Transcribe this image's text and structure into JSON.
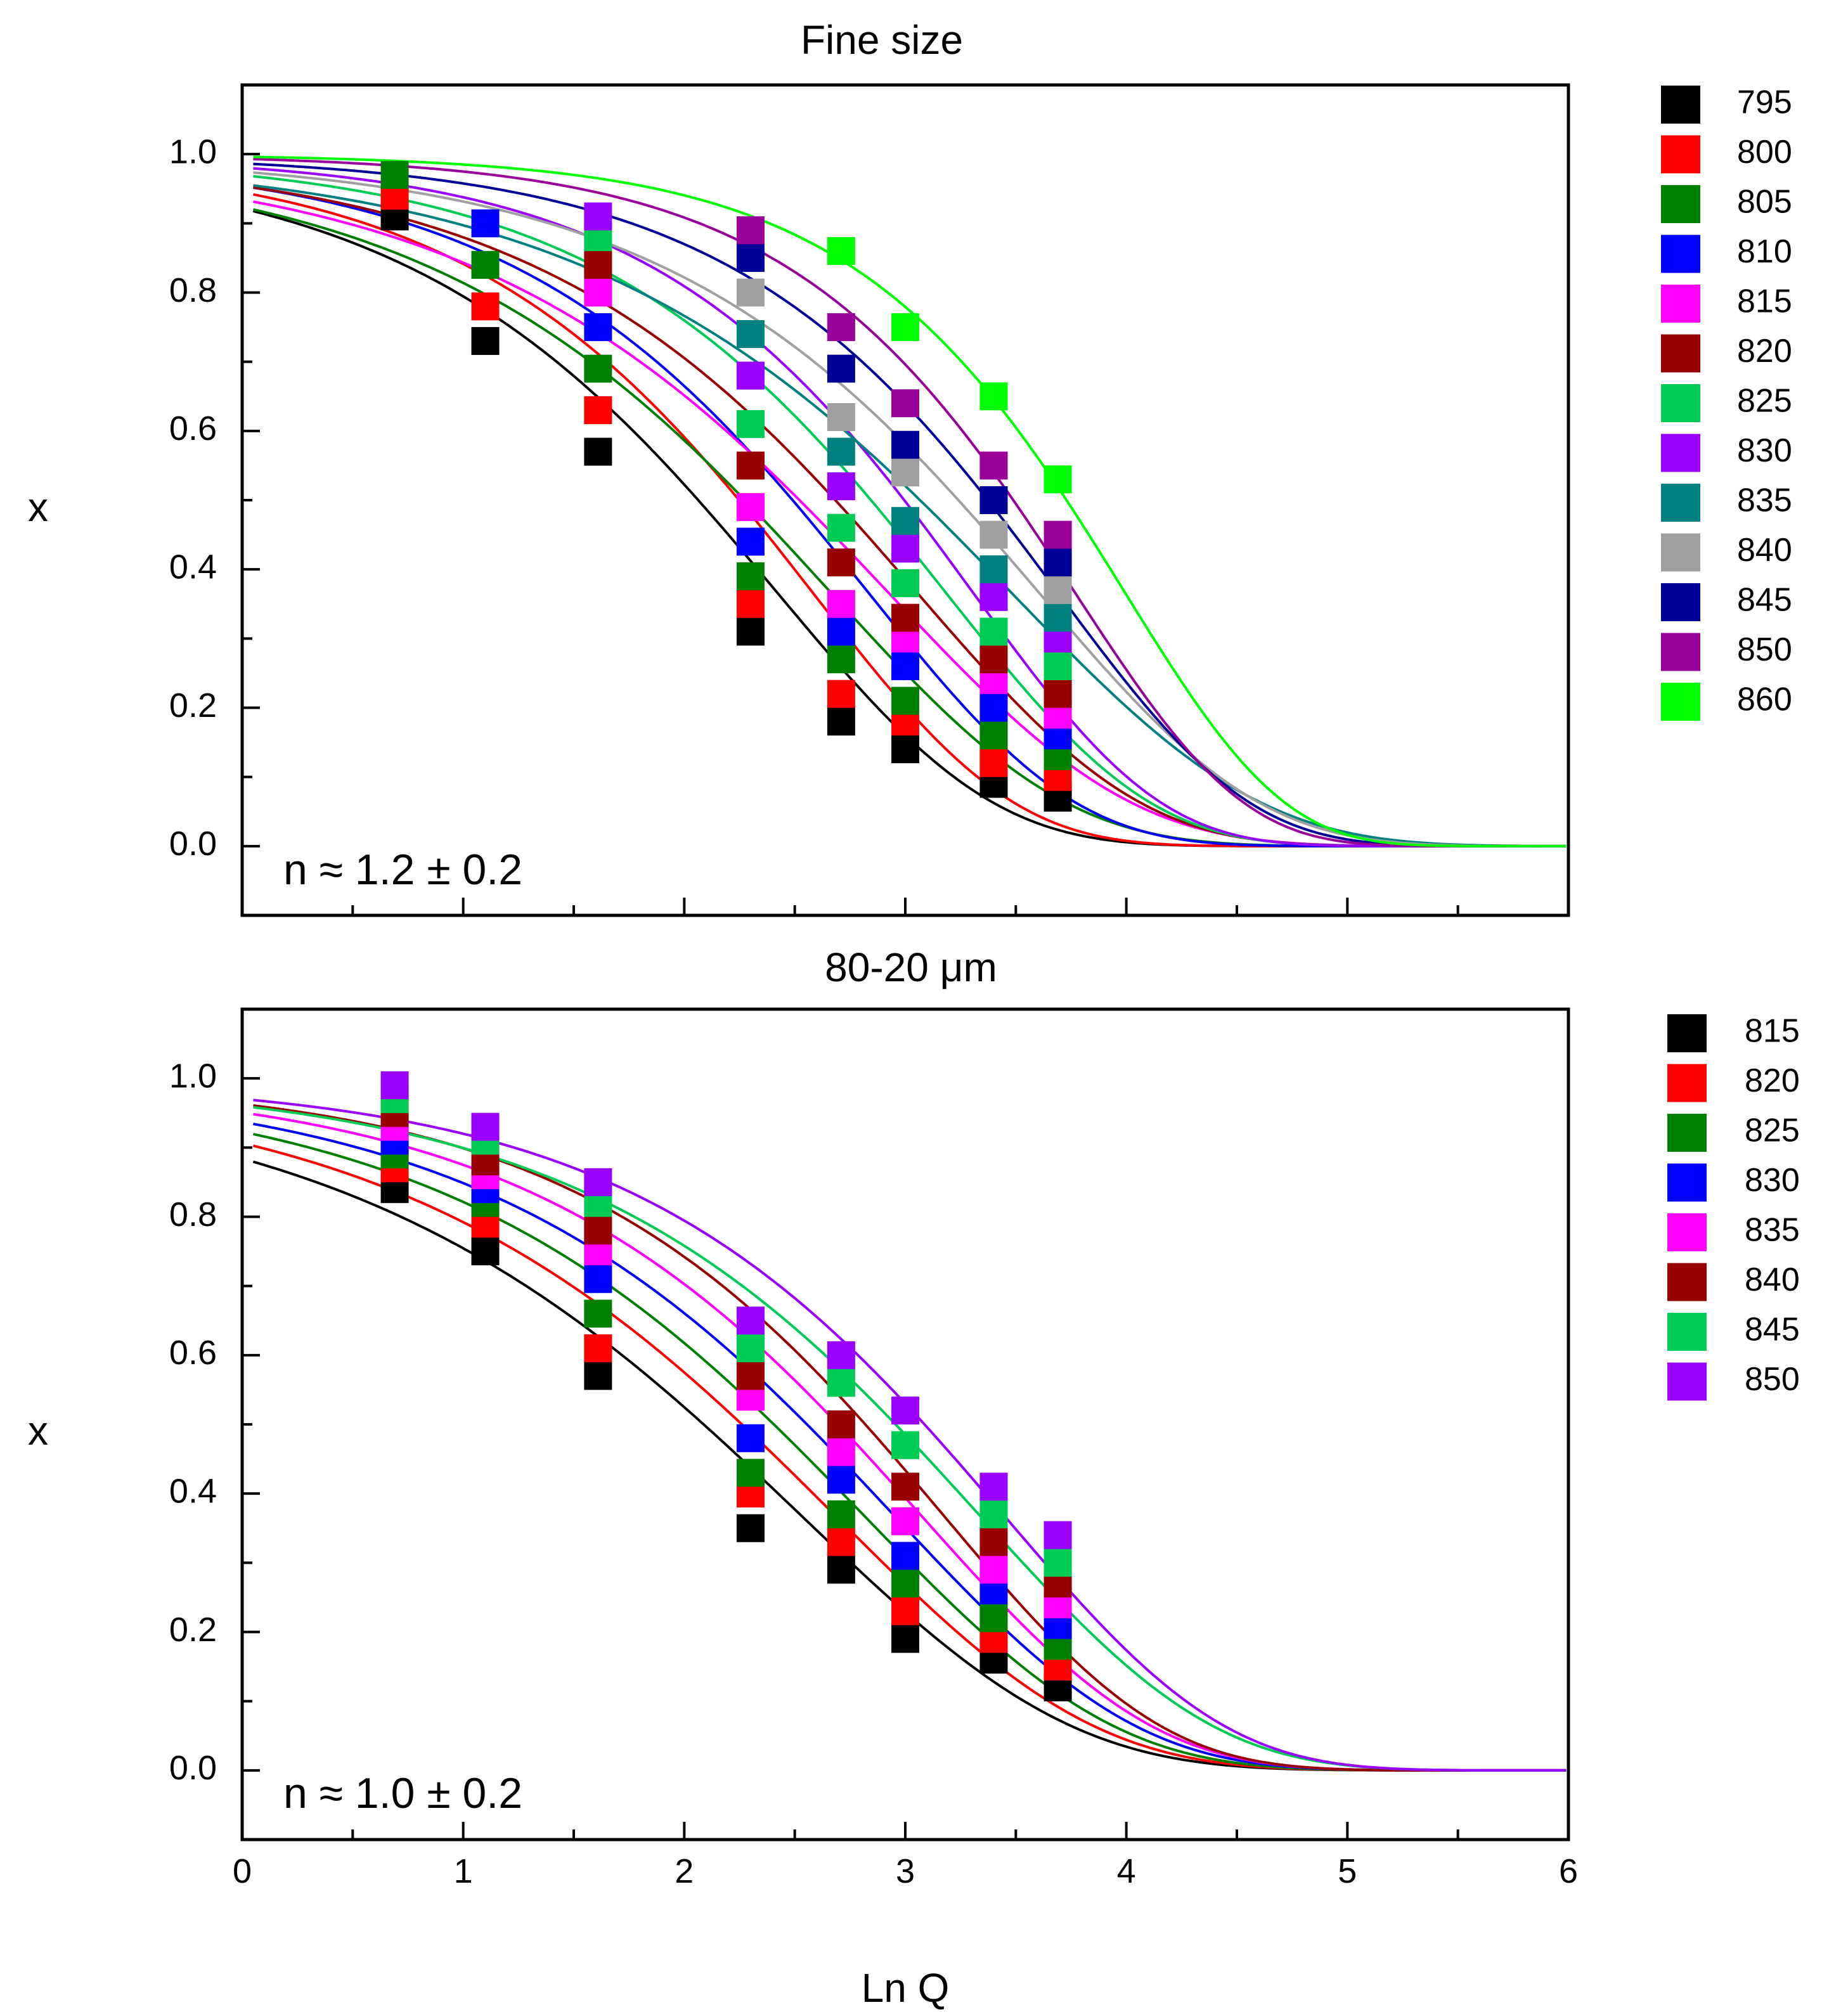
{
  "chart_data": [
    {
      "type": "scatter",
      "title": "Fine size",
      "xlabel": "",
      "ylabel": "x",
      "xlim": [
        0,
        6
      ],
      "ylim": [
        -0.1,
        1.1
      ],
      "yticks": [
        "0.0",
        "0.2",
        "0.4",
        "0.6",
        "0.8",
        "1.0"
      ],
      "annotation": "n ≈ 1.2 ± 0.2",
      "x": [
        0.69,
        1.1,
        1.61,
        2.3,
        2.71,
        3.0,
        3.4,
        3.69
      ],
      "legend": {
        "placement": "outside-right"
      },
      "series": [
        {
          "name": "795",
          "color": "#000000",
          "values": [
            0.91,
            0.73,
            0.57,
            0.31,
            0.18,
            0.14,
            0.09,
            0.07
          ]
        },
        {
          "name": "800",
          "color": "#ff0000",
          "values": [
            0.94,
            0.78,
            0.63,
            0.35,
            0.22,
            0.18,
            0.12,
            0.1
          ]
        },
        {
          "name": "805",
          "color": "#008000",
          "values": [
            0.97,
            0.84,
            0.69,
            0.39,
            0.27,
            0.21,
            0.16,
            0.13
          ]
        },
        {
          "name": "810",
          "color": "#0000ff",
          "values": [
            null,
            0.9,
            0.75,
            0.44,
            0.31,
            0.26,
            0.2,
            0.16
          ]
        },
        {
          "name": "815",
          "color": "#ff00ff",
          "values": [
            null,
            null,
            0.8,
            0.49,
            0.35,
            0.3,
            0.24,
            0.19
          ]
        },
        {
          "name": "820",
          "color": "#990000",
          "values": [
            null,
            null,
            0.84,
            0.55,
            0.41,
            0.33,
            0.27,
            0.22
          ]
        },
        {
          "name": "825",
          "color": "#00cc55",
          "values": [
            null,
            null,
            0.88,
            0.61,
            0.46,
            0.38,
            0.31,
            0.26
          ]
        },
        {
          "name": "830",
          "color": "#9900ff",
          "values": [
            null,
            null,
            0.91,
            0.68,
            0.52,
            0.43,
            0.36,
            0.3
          ]
        },
        {
          "name": "835",
          "color": "#008080",
          "values": [
            null,
            null,
            null,
            0.74,
            0.57,
            0.47,
            0.4,
            0.33
          ]
        },
        {
          "name": "840",
          "color": "#a0a0a0",
          "values": [
            null,
            null,
            null,
            0.8,
            0.62,
            0.54,
            0.45,
            0.37
          ]
        },
        {
          "name": "845",
          "color": "#000099",
          "values": [
            null,
            null,
            null,
            0.85,
            0.69,
            0.58,
            0.5,
            0.41
          ]
        },
        {
          "name": "850",
          "color": "#990099",
          "values": [
            null,
            null,
            null,
            0.89,
            0.75,
            0.64,
            0.55,
            0.45
          ]
        },
        {
          "name": "860",
          "color": "#00ff00",
          "values": [
            null,
            null,
            null,
            null,
            0.86,
            0.75,
            0.65,
            0.53
          ]
        }
      ]
    },
    {
      "type": "scatter",
      "title": "80-20 μm",
      "xlabel": "Ln Q",
      "ylabel": "x",
      "xlim": [
        0,
        6
      ],
      "ylim": [
        -0.1,
        1.1
      ],
      "xticks": [
        "0",
        "1",
        "2",
        "3",
        "4",
        "5",
        "6"
      ],
      "yticks": [
        "0.0",
        "0.2",
        "0.4",
        "0.6",
        "0.8",
        "1.0"
      ],
      "annotation": "n ≈ 1.0 ± 0.2",
      "x": [
        0.69,
        1.1,
        1.61,
        2.3,
        2.71,
        3.0,
        3.4,
        3.69
      ],
      "legend": {
        "placement": "outside-right"
      },
      "series": [
        {
          "name": "815",
          "color": "#000000",
          "values": [
            0.84,
            0.75,
            0.57,
            0.35,
            0.29,
            0.19,
            0.16,
            0.12
          ]
        },
        {
          "name": "820",
          "color": "#ff0000",
          "values": [
            0.87,
            0.79,
            0.61,
            0.4,
            0.33,
            0.23,
            0.19,
            0.15
          ]
        },
        {
          "name": "825",
          "color": "#008000",
          "values": [
            0.89,
            0.82,
            0.66,
            0.43,
            0.37,
            0.27,
            0.22,
            0.18
          ]
        },
        {
          "name": "830",
          "color": "#0000ff",
          "values": [
            0.91,
            0.84,
            0.71,
            0.48,
            0.42,
            0.31,
            0.26,
            0.21
          ]
        },
        {
          "name": "835",
          "color": "#ff00ff",
          "values": [
            0.93,
            0.86,
            0.75,
            0.54,
            0.46,
            0.36,
            0.29,
            0.24
          ]
        },
        {
          "name": "840",
          "color": "#990000",
          "values": [
            0.95,
            0.88,
            0.78,
            0.57,
            0.5,
            0.41,
            0.33,
            0.27
          ]
        },
        {
          "name": "845",
          "color": "#00cc55",
          "values": [
            0.97,
            0.91,
            0.82,
            0.61,
            0.56,
            0.47,
            0.37,
            0.3
          ]
        },
        {
          "name": "850",
          "color": "#9900ff",
          "values": [
            0.99,
            0.93,
            0.85,
            0.65,
            0.6,
            0.52,
            0.41,
            0.34
          ]
        }
      ]
    }
  ]
}
